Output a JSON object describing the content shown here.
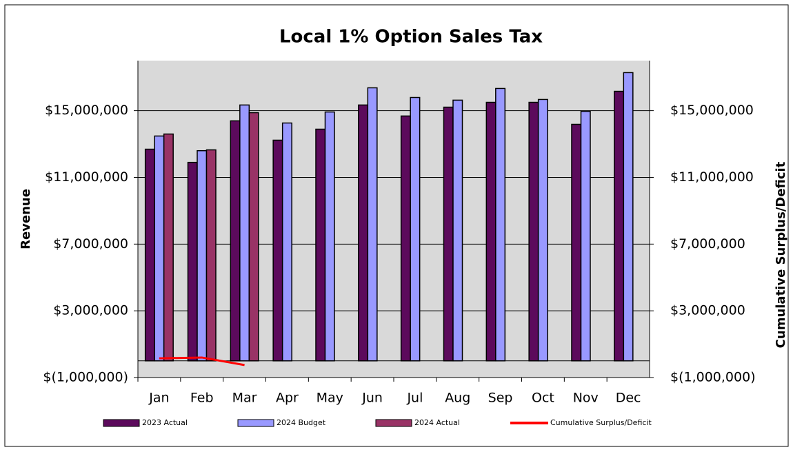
{
  "chart_data": {
    "type": "bar",
    "title": "Local 1% Option Sales Tax",
    "y_label": "Revenue",
    "y2_label": "Cumulative Surplus/Deficit",
    "categories": [
      "Jan",
      "Feb",
      "Mar",
      "Apr",
      "May",
      "Jun",
      "Jul",
      "Aug",
      "Sep",
      "Oct",
      "Nov",
      "Dec"
    ],
    "series": [
      {
        "name": "2023 Actual",
        "color": "#5c0a5c",
        "values": [
          12690000,
          11900000,
          14390000,
          13230000,
          13890000,
          15340000,
          14680000,
          15210000,
          15500000,
          15500000,
          14180000,
          16160000
        ]
      },
      {
        "name": "2024 Budget",
        "color": "#9999ff",
        "values": [
          13480000,
          12600000,
          15340000,
          14260000,
          14920000,
          16370000,
          15790000,
          15630000,
          16330000,
          15670000,
          14960000,
          17280000
        ]
      },
      {
        "name": "2024 Actual",
        "color": "#993366",
        "values": [
          13600000,
          12650000,
          14880000,
          null,
          null,
          null,
          null,
          null,
          null,
          null,
          null,
          null
        ]
      },
      {
        "name": "Cumulative Surplus/Deficit",
        "color": "#ff0000",
        "type": "line",
        "axis": "y2",
        "values": [
          150000,
          200000,
          -250000,
          null,
          null,
          null,
          null,
          null,
          null,
          null,
          null,
          null
        ]
      }
    ],
    "ylim": [
      -1000000,
      18000000
    ],
    "yticks": [
      {
        "value": -1000000,
        "label": "$(1,000,000)"
      },
      {
        "value": 3000000,
        "label": "$3,000,000"
      },
      {
        "value": 7000000,
        "label": "$7,000,000"
      },
      {
        "value": 11000000,
        "label": "$11,000,000"
      },
      {
        "value": 15000000,
        "label": "$15,000,000"
      }
    ],
    "y2lim": [
      -1000000,
      18000000
    ],
    "y2ticks": [
      {
        "value": -1000000,
        "label": "$(1,000,000)"
      },
      {
        "value": 3000000,
        "label": "$3,000,000"
      },
      {
        "value": 7000000,
        "label": "$7,000,000"
      },
      {
        "value": 11000000,
        "label": "$11,000,000"
      },
      {
        "value": 15000000,
        "label": "$15,000,000"
      }
    ],
    "grid": true,
    "legend": "bottom"
  }
}
